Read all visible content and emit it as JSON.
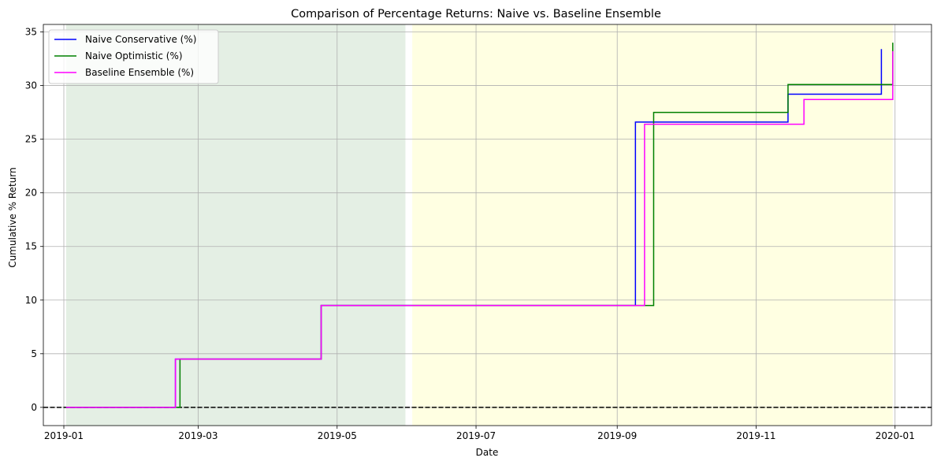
{
  "chart_data": {
    "type": "line",
    "title": "Comparison of Percentage Returns: Naive vs. Baseline Ensemble",
    "xlabel": "Date",
    "ylabel": "Cumulative % Return",
    "xlim": [
      "2018-12-23",
      "2020-01-17"
    ],
    "ylim": [
      -1.7,
      35.7
    ],
    "x_ticks": [
      "2019-01-01",
      "2019-03-01",
      "2019-05-01",
      "2019-07-01",
      "2019-09-01",
      "2019-11-01",
      "2020-01-01"
    ],
    "x_tick_labels": [
      "2019-01",
      "2019-03",
      "2019-05",
      "2019-07",
      "2019-09",
      "2019-11",
      "2020-01"
    ],
    "y_ticks": [
      0,
      5,
      10,
      15,
      20,
      25,
      30,
      35
    ],
    "y_tick_labels": [
      "0",
      "5",
      "10",
      "15",
      "20",
      "25",
      "30",
      "35"
    ],
    "grid": true,
    "legend_position": "top-left",
    "line_style": "step",
    "shaded_regions": [
      {
        "start": "2019-01-02",
        "end": "2019-05-31",
        "color": "#e4efe4"
      },
      {
        "start": "2019-06-03",
        "end": "2019-12-31",
        "color": "#ffffe2"
      }
    ],
    "reference_line": {
      "y": 0,
      "style": "dashed",
      "color": "#000000"
    },
    "series": [
      {
        "name": "Naive Conservative (%)",
        "color": "#0000ff",
        "points": [
          [
            "2019-01-02",
            0
          ],
          [
            "2019-02-19",
            4.5
          ],
          [
            "2019-04-24",
            9.5
          ],
          [
            "2019-09-09",
            26.6
          ],
          [
            "2019-11-15",
            29.2
          ],
          [
            "2019-12-26",
            33.4
          ]
        ],
        "end": "2019-12-26"
      },
      {
        "name": "Naive Optimistic (%)",
        "color": "#008000",
        "points": [
          [
            "2019-01-02",
            0
          ],
          [
            "2019-02-21",
            4.5
          ],
          [
            "2019-04-24",
            9.5
          ],
          [
            "2019-09-17",
            27.5
          ],
          [
            "2019-11-15",
            30.1
          ],
          [
            "2019-12-31",
            34.0
          ]
        ],
        "end": "2019-12-31"
      },
      {
        "name": "Baseline Ensemble (%)",
        "color": "#ff00ff",
        "points": [
          [
            "2019-01-02",
            0
          ],
          [
            "2019-02-19",
            4.5
          ],
          [
            "2019-04-24",
            9.5
          ],
          [
            "2019-09-13",
            26.4
          ],
          [
            "2019-11-22",
            28.7
          ],
          [
            "2019-12-31",
            33.2
          ]
        ],
        "end": "2019-12-31"
      }
    ]
  }
}
